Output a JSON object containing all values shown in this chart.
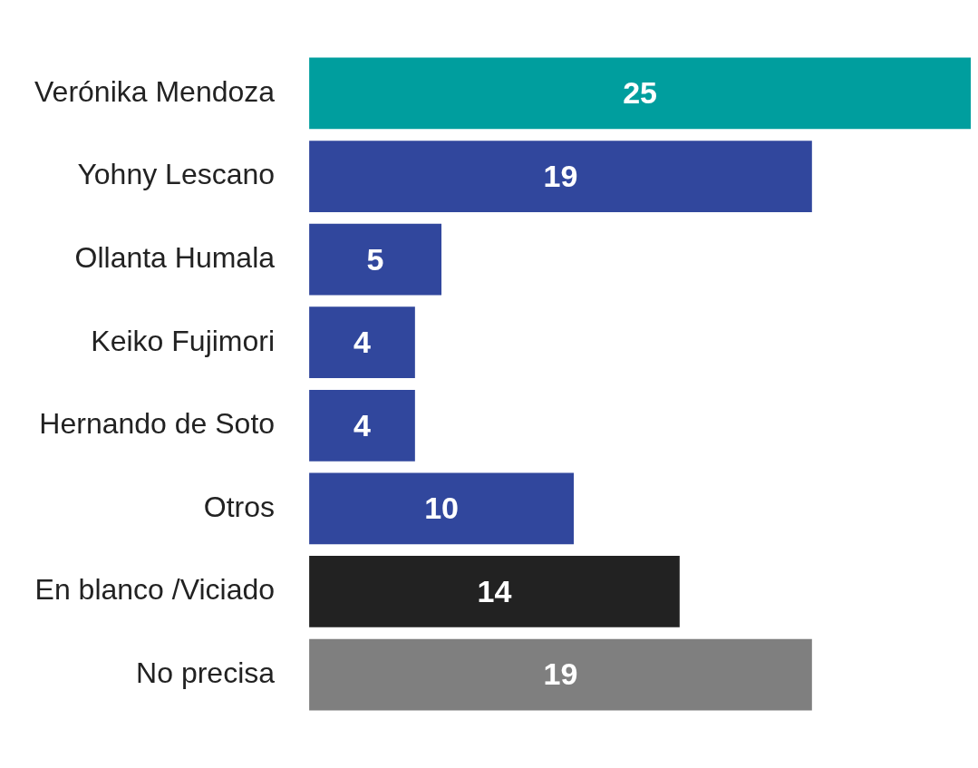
{
  "chart_data": {
    "type": "bar",
    "orientation": "horizontal",
    "categories": [
      "Verónika Mendoza",
      "Yohny Lescano",
      "Ollanta Humala",
      "Keiko Fujimori",
      "Hernando de Soto",
      "Otros",
      "En blanco /Viciado",
      "No precisa"
    ],
    "values": [
      25,
      19,
      5,
      4,
      4,
      10,
      14,
      19
    ],
    "colors": [
      "#009e9e",
      "#31479d",
      "#31479d",
      "#31479d",
      "#31479d",
      "#31479d",
      "#222222",
      "#7f7f7f"
    ],
    "xlim": [
      0,
      25
    ],
    "data_labels": true
  }
}
